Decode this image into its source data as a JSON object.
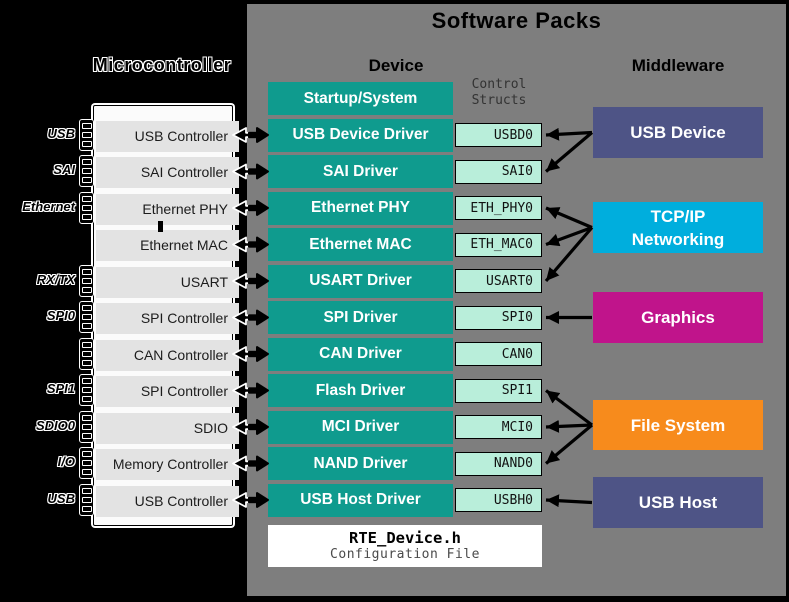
{
  "header": {
    "title": "Software Packs",
    "device_column": "Device",
    "middleware_column": "Middleware",
    "control_structs_line1": "Control",
    "control_structs_line2": "Structs"
  },
  "microcontroller": {
    "title": "Microcontroller",
    "rows": [
      {
        "label": "USB Controller",
        "pin": "USB",
        "pins": true
      },
      {
        "label": "SAI Controller",
        "pin": "SAI",
        "pins": true
      },
      {
        "label": "Ethernet PHY",
        "pin": "Ethernet",
        "pins": true
      },
      {
        "label": "Ethernet MAC",
        "pin": "",
        "pins": false
      },
      {
        "label": "USART",
        "pin": "RX/TX",
        "pins": true
      },
      {
        "label": "SPI Controller",
        "pin": "SPI0",
        "pins": true
      },
      {
        "label": "CAN Controller",
        "pin": "",
        "pins": true
      },
      {
        "label": "SPI Controller",
        "pin": "SPI1",
        "pins": true
      },
      {
        "label": "SDIO",
        "pin": "SDIO0",
        "pins": true
      },
      {
        "label": "Memory Controller",
        "pin": "I/O",
        "pins": true
      },
      {
        "label": "USB Controller",
        "pin": "USB",
        "pins": true
      }
    ]
  },
  "device": {
    "startup": "Startup/System",
    "drivers": [
      {
        "name": "USB Device Driver",
        "struct": "USBD0"
      },
      {
        "name": "SAI Driver",
        "struct": "SAI0"
      },
      {
        "name": "Ethernet PHY",
        "struct": "ETH_PHY0"
      },
      {
        "name": "Ethernet MAC",
        "struct": "ETH_MAC0"
      },
      {
        "name": "USART Driver",
        "struct": "USART0"
      },
      {
        "name": "SPI Driver",
        "struct": "SPI0"
      },
      {
        "name": "CAN Driver",
        "struct": "CAN0"
      },
      {
        "name": "Flash Driver",
        "struct": "SPI1"
      },
      {
        "name": "MCI Driver",
        "struct": "MCI0"
      },
      {
        "name": "NAND Driver",
        "struct": "NAND0"
      },
      {
        "name": "USB Host Driver",
        "struct": "USBH0"
      }
    ],
    "rte_file": "RTE_Device.h",
    "rte_caption": "Configuration File"
  },
  "middleware": [
    {
      "name": "USB Device",
      "color": "#4e5486",
      "connects": [
        "USBD0",
        "SAI0"
      ]
    },
    {
      "name": "TCP/IP Networking",
      "color": "#00aedd",
      "connects": [
        "ETH_PHY0",
        "ETH_MAC0",
        "USART0"
      ]
    },
    {
      "name": "Graphics",
      "color": "#c0148b",
      "connects": [
        "SPI0"
      ]
    },
    {
      "name": "File System",
      "color": "#f78b1c",
      "connects": [
        "SPI1",
        "MCI0",
        "NAND0"
      ]
    },
    {
      "name": "USB Host",
      "color": "#4e5486",
      "connects": [
        "USBH0"
      ]
    }
  ],
  "colors": {
    "background": "#000000",
    "panel": "#7e7e7e",
    "driver_teal": "#0f9b8e",
    "struct_mint": "#b9eeda",
    "mcu_row_gray": "#e3e3e3",
    "mcu_fill": "#fbfbfb"
  }
}
